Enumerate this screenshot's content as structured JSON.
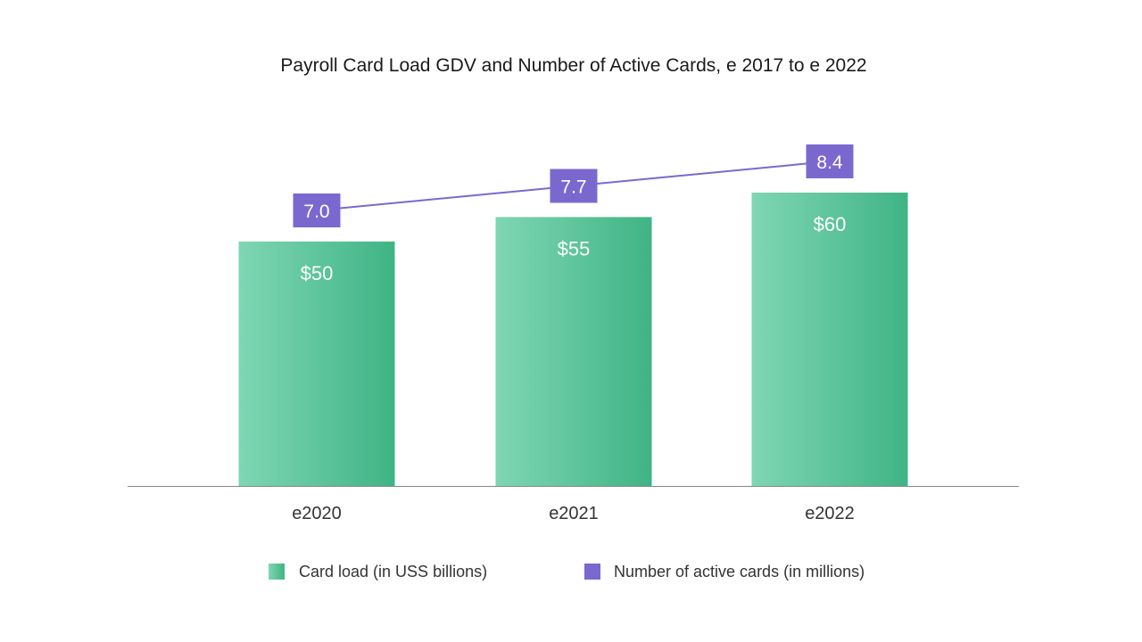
{
  "chart_data": {
    "type": "bar",
    "title": "Payroll Card Load GDV and Number of Active Cards, e 2017 to e 2022",
    "categories": [
      "e2020",
      "e2021",
      "e2022"
    ],
    "series": [
      {
        "name": "Card load (in USS billions)",
        "kind": "bar",
        "values": [
          50,
          55,
          60
        ],
        "labels": [
          "$50",
          "$55",
          "$60"
        ],
        "color": "#4dbd92"
      },
      {
        "name": "Number of active cards (in millions)",
        "kind": "line",
        "values": [
          7.0,
          7.7,
          8.4
        ],
        "labels": [
          "7.0",
          "7.7",
          "8.4"
        ],
        "color": "#7b68cf"
      }
    ],
    "bar_ylim": [
      0,
      60
    ],
    "line_ylim": [
      0,
      8.4
    ],
    "legend_position": "bottom",
    "grid": false
  },
  "colors": {
    "bar_light": "#7fd6b4",
    "bar_dark": "#3fb484",
    "line": "#7b68cf",
    "axis": "#888888"
  }
}
